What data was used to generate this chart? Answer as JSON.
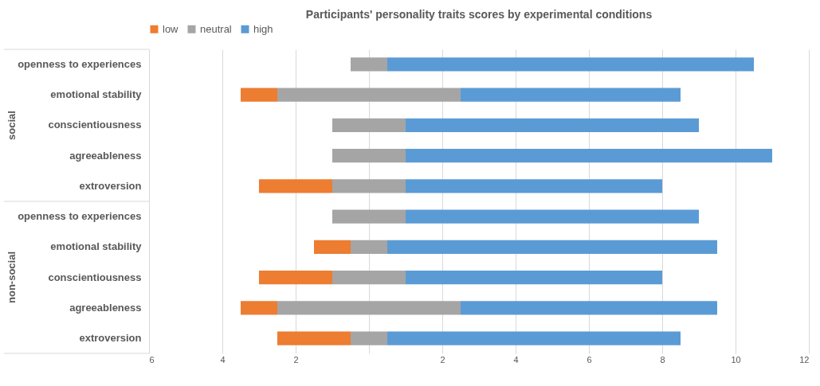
{
  "chart_data": {
    "type": "bar",
    "orientation": "horizontal",
    "title": "Participants' personality traits scores by experimental conditions",
    "categories": [
      "openness to experiences",
      "emotional stability",
      "conscientiousness",
      "agreeableness",
      "extroversion",
      "openness to experiences",
      "emotional stability",
      "conscientiousness",
      "agreeableness",
      "extroversion"
    ],
    "annotations": [
      "social",
      "non-social"
    ],
    "series": [
      {
        "name": "low",
        "color": "#ed7d31",
        "base": [
          null,
          -3.5,
          null,
          null,
          -3,
          null,
          -1.5,
          -3,
          -3.5,
          -2.5
        ],
        "values": [
          null,
          1,
          null,
          null,
          2,
          null,
          1,
          2,
          1,
          2
        ]
      },
      {
        "name": "neutral",
        "color": "#a5a5a5",
        "base": [
          -0.5,
          -2.5,
          -1,
          -1,
          -1,
          -1,
          -0.5,
          -1,
          -2.5,
          -0.5
        ],
        "values": [
          1,
          5,
          2,
          2,
          2,
          2,
          1,
          2,
          5,
          1
        ]
      },
      {
        "name": "high",
        "color": "#5b9bd5",
        "base": [
          0.5,
          2.5,
          1,
          1,
          1,
          1,
          0.5,
          1,
          2.5,
          0.5
        ],
        "values": [
          10,
          6,
          8,
          10,
          7,
          8,
          9,
          7,
          7,
          8
        ]
      }
    ],
    "xlim": [
      -6,
      12
    ],
    "xticks": [
      {
        "value": -6,
        "label": "6"
      },
      {
        "value": -4,
        "label": "4"
      },
      {
        "value": -2,
        "label": "2"
      },
      {
        "value": 0,
        "label": null
      },
      2,
      4,
      6,
      8,
      10,
      12
    ],
    "grid": "x",
    "legend": "top"
  }
}
